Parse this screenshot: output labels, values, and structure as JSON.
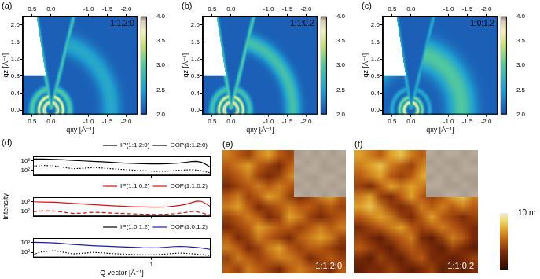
{
  "chart_data": [
    {
      "panel": "(a)",
      "type": "heatmap",
      "title": "1:1.2:0",
      "x_label": "qxy [Å⁻¹]",
      "y_label": "qz [Å⁻¹]",
      "grid": false,
      "xlim": [
        0.75,
        -2.3
      ],
      "xticks": [
        0.5,
        {
          "value": 0,
          "label": "0.0"
        },
        {
          "value": -1,
          "label": "-1.0"
        },
        -1.5,
        {
          "value": -2,
          "label": "-2.0"
        }
      ],
      "ylim": [
        -0.1,
        2.2
      ],
      "yticks": [
        {
          "value": 0,
          "label": "0.0"
        },
        0.4,
        0.8,
        1.2,
        1.6,
        {
          "value": 2,
          "label": "2.0"
        }
      ],
      "colorbar": {
        "range": [
          2,
          4
        ],
        "ticks": [
          {
            "value": 2,
            "label": "2.0"
          },
          2.5,
          {
            "value": 3,
            "label": "3.0"
          },
          3.5,
          {
            "value": 4,
            "label": "4.0"
          }
        ]
      },
      "background": 2.1,
      "rings": [
        {
          "q": 0.18,
          "width": 0.05,
          "level": 3.9
        },
        {
          "q": 0.32,
          "width": 0.05,
          "level": 3.7
        },
        {
          "q": 0.5,
          "width": 0.08,
          "level": 3.0
        },
        {
          "q": 1.6,
          "width": 0.25,
          "level": 2.6
        }
      ],
      "missing_wedge": {
        "at_qz": 2.0,
        "left_qxy": 0.35,
        "right_qxy": -0.55,
        "level": 2.9
      },
      "no_data_above_qz": 0.8
    },
    {
      "panel": "(b)",
      "type": "heatmap",
      "title": "1:1:0.2",
      "x_label": "qxy [Å⁻¹]",
      "y_label": "qz [Å⁻¹]",
      "grid": false,
      "xlim": [
        0.75,
        -2.3
      ],
      "xticks": [
        0.5,
        {
          "value": 0,
          "label": "0.0"
        },
        {
          "value": -1,
          "label": "-1.0"
        },
        -1.5,
        {
          "value": -2,
          "label": "-2.0"
        }
      ],
      "ylim": [
        -0.1,
        2.2
      ],
      "yticks": [
        {
          "value": 0,
          "label": "0.0"
        },
        0.4,
        0.8,
        1.2,
        1.6,
        {
          "value": 2,
          "label": "2.0"
        }
      ],
      "colorbar": {
        "range": [
          2,
          4
        ],
        "ticks": [
          {
            "value": 2,
            "label": "2.0"
          },
          2.5,
          {
            "value": 3,
            "label": "3.0"
          },
          3.5,
          {
            "value": 4,
            "label": "4.0"
          }
        ]
      },
      "background": 2.1,
      "rings": [
        {
          "q": 0.18,
          "width": 0.05,
          "level": 3.9
        },
        {
          "q": 0.32,
          "width": 0.05,
          "level": 3.6
        },
        {
          "q": 0.5,
          "width": 0.08,
          "level": 2.9
        },
        {
          "q": 1.65,
          "width": 0.2,
          "level": 2.9
        }
      ],
      "missing_wedge": {
        "at_qz": 2.0,
        "left_qxy": 0.35,
        "right_qxy": -0.55,
        "level": 3.0
      },
      "no_data_above_qz": 0.8
    },
    {
      "panel": "(c)",
      "type": "heatmap",
      "title": "1:0:1.2",
      "x_label": "qxy [Å⁻¹]",
      "y_label": "qz [Å⁻¹]",
      "grid": false,
      "xlim": [
        0.75,
        -2.3
      ],
      "xticks": [
        0.5,
        {
          "value": 0,
          "label": "0.0"
        },
        {
          "value": -1,
          "label": "-1.0"
        },
        -1.5,
        {
          "value": -2,
          "label": "-2.0"
        }
      ],
      "ylim": [
        -0.1,
        2.2
      ],
      "yticks": [
        {
          "value": 0,
          "label": "0.0"
        },
        0.4,
        0.8,
        1.2,
        1.6,
        {
          "value": 2,
          "label": "2.0"
        }
      ],
      "colorbar": {
        "range": [
          2,
          4
        ],
        "ticks": [
          {
            "value": 2,
            "label": "2.0"
          },
          2.5,
          {
            "value": 3,
            "label": "3.0"
          },
          3.5,
          {
            "value": 4,
            "label": "4.0"
          }
        ]
      },
      "background": 2.1,
      "rings": [
        {
          "q": 0.18,
          "width": 0.05,
          "level": 3.8
        },
        {
          "q": 0.3,
          "width": 0.05,
          "level": 3.2
        },
        {
          "q": 0.5,
          "width": 0.06,
          "level": 2.6
        },
        {
          "q": 1.35,
          "width": 0.35,
          "level": 3.0
        }
      ],
      "missing_wedge": {
        "at_qz": 2.0,
        "left_qxy": 0.35,
        "right_qxy": -0.55,
        "level": 2.6
      },
      "no_data_above_qz": 0.8
    },
    {
      "panel": "(d)",
      "type": "line",
      "log": true,
      "grid": false,
      "legend": "top",
      "tick_labels": "y",
      "x": [
        0.25,
        0.28,
        0.32,
        0.36,
        0.4,
        0.45,
        0.5,
        0.56,
        0.63,
        0.7,
        0.8,
        0.9,
        1.0,
        1.1,
        1.2,
        1.3,
        1.4,
        1.5,
        1.6,
        1.7,
        1.8,
        1.9,
        2.0
      ],
      "xlim": [
        0.25,
        2.0
      ],
      "xticks": [
        1
      ],
      "ylim": [
        30,
        3000
      ],
      "yticks": [
        {
          "value": 100,
          "label": "10²"
        },
        {
          "value": 1000,
          "label": "10³"
        }
      ],
      "series": [
        {
          "name": "IP(1:1.2:0)",
          "color": "#000000",
          "line_style": "dotted",
          "values": [
            280,
            330,
            300,
            200,
            150,
            170,
            200,
            180,
            150,
            130,
            110,
            95,
            85,
            80,
            85,
            95,
            105,
            115,
            120,
            110,
            90,
            70,
            55
          ]
        },
        {
          "name": "OOP(1:1.2:0)",
          "color": "#000000",
          "line_style": "solid",
          "values": [
            1600,
            1550,
            1450,
            1300,
            1150,
            1000,
            900,
            800,
            700,
            620,
            540,
            500,
            480,
            480,
            500,
            550,
            620,
            720,
            850,
            900,
            700,
            400,
            200
          ]
        }
      ]
    },
    {
      "type": "line",
      "log": true,
      "grid": false,
      "legend": "top",
      "tick_labels": "y",
      "y_label": "Intensity",
      "x": [
        0.25,
        0.28,
        0.32,
        0.36,
        0.4,
        0.45,
        0.5,
        0.56,
        0.63,
        0.7,
        0.8,
        0.9,
        1.0,
        1.1,
        1.2,
        1.3,
        1.4,
        1.5,
        1.6,
        1.7,
        1.8,
        1.9,
        2.0
      ],
      "xlim": [
        0.25,
        2.0
      ],
      "xticks": [
        1
      ],
      "ylim": [
        30,
        3000
      ],
      "yticks": [
        {
          "value": 100,
          "label": "10²"
        },
        {
          "value": 1000,
          "label": "10³"
        }
      ],
      "series": [
        {
          "name": "IP(1:1:0.2)",
          "color": "#e01010",
          "line_style": "dashed",
          "values": [
            90,
            115,
            110,
            80,
            60,
            65,
            80,
            75,
            65,
            60,
            55,
            50,
            48,
            48,
            50,
            55,
            65,
            80,
            95,
            90,
            70,
            50,
            40
          ]
        },
        {
          "name": "OOP(1:1:0.2)",
          "color": "#e01010",
          "line_style": "solid",
          "values": [
            1000,
            950,
            880,
            780,
            680,
            580,
            500,
            440,
            380,
            340,
            300,
            280,
            270,
            270,
            290,
            340,
            420,
            560,
            800,
            1200,
            1100,
            600,
            300
          ]
        }
      ]
    },
    {
      "type": "line",
      "log": true,
      "grid": false,
      "legend": "top",
      "x_label": "Q vector [Å⁻¹]",
      "x": [
        0.25,
        0.28,
        0.32,
        0.36,
        0.4,
        0.45,
        0.5,
        0.56,
        0.63,
        0.7,
        0.8,
        0.9,
        1.0,
        1.1,
        1.2,
        1.3,
        1.4,
        1.5,
        1.6,
        1.7,
        1.8,
        1.9,
        2.0
      ],
      "xlim": [
        0.25,
        2.0
      ],
      "xticks": [
        1
      ],
      "ylim": [
        30,
        3000
      ],
      "yticks": [
        {
          "value": 100,
          "label": "10²"
        },
        {
          "value": 1000,
          "label": "10³"
        }
      ],
      "series": [
        {
          "name": "IP(1:0:1.2)",
          "color": "#000000",
          "line_style": "dotted",
          "values": [
            60,
            120,
            150,
            100,
            70,
            80,
            100,
            90,
            75,
            68,
            60,
            55,
            55,
            60,
            68,
            78,
            85,
            80,
            72,
            65,
            58,
            52,
            48
          ]
        },
        {
          "name": "OOP(1:0:1.2)",
          "color": "#1c1cb0",
          "line_style": "solid",
          "values": [
            1100,
            1050,
            950,
            800,
            650,
            560,
            500,
            450,
            410,
            380,
            340,
            310,
            300,
            310,
            350,
            400,
            420,
            400,
            360,
            320,
            280,
            240,
            200
          ]
        }
      ]
    },
    {
      "panel": "(e)",
      "type": "heatmap",
      "title": "1:1.2:0",
      "tick_labels": false,
      "cells": [
        [
          6,
          5,
          4,
          6,
          7,
          5,
          4,
          5,
          6,
          5,
          4,
          5
        ],
        [
          5,
          6,
          7,
          5,
          4,
          3,
          5,
          6,
          7,
          6,
          5,
          4
        ],
        [
          4,
          5,
          6,
          4,
          3,
          4,
          6,
          7,
          5,
          4,
          5,
          6
        ],
        [
          3,
          4,
          5,
          6,
          5,
          6,
          5,
          4,
          3,
          5,
          6,
          7
        ],
        [
          5,
          6,
          4,
          5,
          7,
          6,
          4,
          3,
          4,
          6,
          7,
          5
        ],
        [
          6,
          7,
          5,
          3,
          4,
          5,
          6,
          5,
          5,
          4,
          5,
          4
        ],
        [
          4,
          5,
          6,
          5,
          3,
          4,
          7,
          6,
          4,
          3,
          4,
          5
        ],
        [
          3,
          4,
          5,
          7,
          6,
          5,
          5,
          4,
          5,
          6,
          5,
          6
        ],
        [
          5,
          3,
          4,
          6,
          5,
          4,
          3,
          5,
          6,
          7,
          6,
          4
        ],
        [
          6,
          5,
          3,
          4,
          6,
          7,
          5,
          4,
          5,
          5,
          4,
          3
        ],
        [
          4,
          6,
          5,
          4,
          5,
          6,
          6,
          5,
          3,
          4,
          5,
          4
        ],
        [
          5,
          4,
          6,
          5,
          4,
          3,
          5,
          6,
          5,
          4,
          3,
          5
        ]
      ],
      "inset": {
        "cells": [
          [
            6,
            7,
            6,
            7,
            6,
            7
          ],
          [
            7,
            6,
            7,
            6,
            7,
            6
          ],
          [
            6,
            7,
            7,
            6,
            6,
            7
          ],
          [
            7,
            6,
            6,
            7,
            7,
            6
          ],
          [
            6,
            7,
            6,
            7,
            6,
            7
          ],
          [
            7,
            6,
            7,
            6,
            7,
            6
          ]
        ]
      }
    },
    {
      "panel": "(f)",
      "type": "heatmap",
      "title": "1:1:0.2",
      "tick_labels": false,
      "cells": [
        [
          7,
          6,
          5,
          7,
          8,
          6,
          5,
          6,
          7,
          6,
          7,
          6
        ],
        [
          6,
          7,
          8,
          6,
          5,
          4,
          6,
          7,
          8,
          6,
          5,
          5
        ],
        [
          5,
          6,
          7,
          5,
          4,
          5,
          7,
          8,
          6,
          5,
          4,
          6
        ],
        [
          4,
          3,
          5,
          7,
          6,
          7,
          6,
          5,
          4,
          6,
          7,
          8
        ],
        [
          6,
          7,
          4,
          3,
          5,
          7,
          5,
          4,
          5,
          7,
          8,
          6
        ],
        [
          7,
          8,
          6,
          4,
          3,
          4,
          6,
          5,
          6,
          5,
          6,
          5
        ],
        [
          5,
          6,
          7,
          6,
          4,
          3,
          5,
          7,
          5,
          4,
          3,
          4
        ],
        [
          3,
          4,
          5,
          6,
          7,
          5,
          4,
          5,
          6,
          5,
          4,
          3
        ],
        [
          4,
          3,
          2,
          4,
          5,
          6,
          3,
          2,
          4,
          6,
          5,
          3
        ],
        [
          5,
          4,
          3,
          2,
          4,
          5,
          4,
          3,
          2,
          4,
          3,
          2
        ],
        [
          3,
          2,
          4,
          3,
          2,
          4,
          5,
          3,
          3,
          2,
          3,
          4
        ],
        [
          2,
          3,
          3,
          4,
          3,
          2,
          3,
          4,
          2,
          3,
          2,
          3
        ]
      ],
      "inset": {
        "cells": [
          [
            7,
            6,
            7,
            7,
            6,
            7
          ],
          [
            6,
            7,
            6,
            6,
            7,
            6
          ],
          [
            7,
            6,
            7,
            6,
            7,
            7
          ],
          [
            6,
            7,
            6,
            7,
            6,
            6
          ],
          [
            7,
            7,
            6,
            6,
            7,
            6
          ],
          [
            6,
            6,
            7,
            7,
            6,
            7
          ]
        ]
      }
    },
    {
      "type": "colorbar",
      "range": [
        0,
        10
      ],
      "ticks": [
        {
          "value": 10,
          "label": "10 nm"
        }
      ]
    }
  ]
}
